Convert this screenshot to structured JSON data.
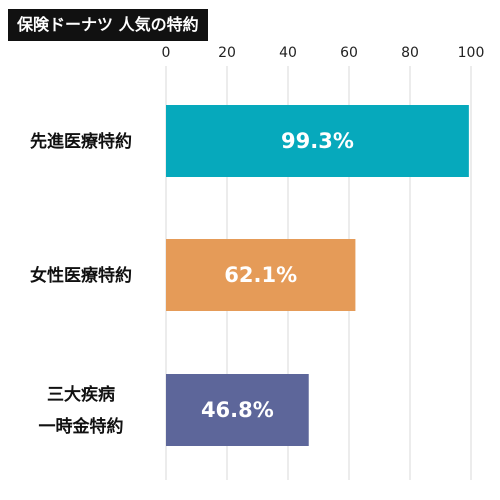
{
  "chart_data": {
    "type": "bar",
    "orientation": "horizontal",
    "title": "保険ドーナツ 人気の特約",
    "categories": [
      [
        "先進医療特約"
      ],
      [
        "女性医療特約"
      ],
      [
        "三大疾病",
        "一時金特約"
      ]
    ],
    "values": [
      99.3,
      62.1,
      46.8
    ],
    "data_labels": [
      "99.3%",
      "62.1%",
      "46.8%"
    ],
    "colors": [
      "#06a9bc",
      "#e59b58",
      "#5d669a"
    ],
    "xlim": [
      0,
      100
    ],
    "xticks": [
      0,
      20,
      40,
      60,
      80,
      100
    ],
    "x_axis_position": "top",
    "grid": true,
    "grid_color": "#d9d9d9",
    "legend": "none"
  }
}
